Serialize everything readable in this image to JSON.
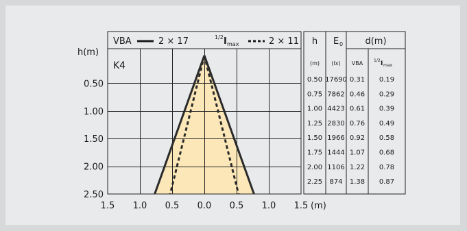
{
  "chart_data": {
    "type": "line",
    "panel_label": "K4",
    "legend": {
      "solid_prefix": "VBA",
      "solid_value": "2 × 17",
      "dashed_value": "2 × 11",
      "half_label": "1/2",
      "i_label": "I",
      "i_sub": "max"
    },
    "ylabel": "h(m)",
    "xunit": "(m)",
    "x_ticks": [
      "1.5",
      "1.0",
      "0.5",
      "0.0",
      "0.5",
      "1.0",
      "1.5"
    ],
    "y_ticks": [
      "0.50",
      "1.00",
      "1.50",
      "2.00",
      "2.50"
    ],
    "xlim": [
      -1.5,
      1.5
    ],
    "ylim": [
      0,
      2.5
    ],
    "grid": true,
    "series": [
      {
        "name": "VBA",
        "style": "solid",
        "color": "#2b2b2b",
        "fill": "#fbe7b8",
        "h": [
          0,
          2.5
        ],
        "half_width": [
          0,
          0.77
        ]
      },
      {
        "name": "1/2 Imax",
        "style": "dashed",
        "color": "#2b2b2b",
        "h": [
          0,
          2.5
        ],
        "half_width": [
          0,
          0.53
        ]
      }
    ],
    "table": {
      "header_h": "h",
      "header_e_main": "E",
      "header_e_sub": "0",
      "header_d": "d(m)",
      "sub_h": "(m)",
      "sub_e": "(lx)",
      "sub_vba": "VBA",
      "sub_half_frac": "1/2",
      "sub_half_i": "I",
      "sub_half_max": "max",
      "rows": [
        [
          "0.50",
          "17690",
          "0.31",
          "0.19"
        ],
        [
          "0.75",
          "7862",
          "0.46",
          "0.29"
        ],
        [
          "1.00",
          "4423",
          "0.61",
          "0.39"
        ],
        [
          "1.25",
          "2830",
          "0.76",
          "0.49"
        ],
        [
          "1.50",
          "1966",
          "0.92",
          "0.58"
        ],
        [
          "1.75",
          "1444",
          "1.07",
          "0.68"
        ],
        [
          "2.00",
          "1106",
          "1.22",
          "0.78"
        ],
        [
          "2.25",
          "874",
          "1.38",
          "0.87"
        ]
      ]
    }
  }
}
